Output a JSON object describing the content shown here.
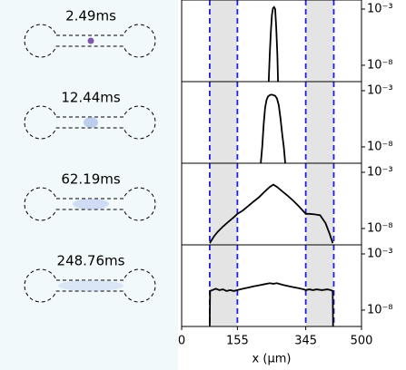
{
  "chart_data": [
    {
      "type": "line",
      "title": "2.49ms",
      "color": "#000000",
      "log_scale": true,
      "xlim": [
        0,
        500
      ],
      "ylim": [
        3.5e-10,
        0.0064
      ],
      "yticks": [
        {
          "value": 0.001,
          "label": "10⁻³"
        },
        {
          "value": 1e-08,
          "label": "10⁻⁸"
        }
      ],
      "regions": [
        [
          78,
          155
        ],
        [
          345,
          423
        ]
      ],
      "region_color": "#e4e4e4",
      "region_line_color": "#1f1fdc",
      "x": [
        242,
        245,
        248,
        251,
        254,
        257,
        260,
        263,
        266,
        268
      ],
      "values": [
        3.5e-10,
        1e-07,
        1e-05,
        0.0003,
        0.0012,
        0.0015,
        0.001,
        2e-05,
        1e-07,
        3.5e-10
      ]
    },
    {
      "type": "line",
      "title": "12.44ms",
      "color": "#000000",
      "log_scale": true,
      "xlim": [
        0,
        500
      ],
      "ylim": [
        3.5e-10,
        0.0064
      ],
      "yticks": [
        {
          "value": 0.001,
          "label": "10⁻³"
        },
        {
          "value": 1e-08,
          "label": "10⁻⁸"
        }
      ],
      "regions": [
        [
          78,
          155
        ],
        [
          345,
          423
        ]
      ],
      "region_color": "#e4e4e4",
      "region_line_color": "#1f1fdc",
      "x": [
        220,
        224,
        228,
        232,
        236,
        240,
        245,
        250,
        255,
        260,
        265,
        270,
        275,
        280,
        284,
        288
      ],
      "values": [
        3.5e-10,
        1e-08,
        1e-06,
        3e-05,
        0.00015,
        0.0003,
        0.0004,
        0.00045,
        0.0004,
        0.00035,
        0.0002,
        5e-05,
        3e-06,
        1e-07,
        1e-08,
        3.5e-10
      ]
    },
    {
      "type": "line",
      "title": "62.19ms",
      "color": "#000000",
      "log_scale": true,
      "xlim": [
        0,
        500
      ],
      "ylim": [
        3.5e-10,
        0.0064
      ],
      "yticks": [
        {
          "value": 0.001,
          "label": "10⁻³"
        },
        {
          "value": 1e-08,
          "label": "10⁻⁸"
        }
      ],
      "regions": [
        [
          78,
          155
        ],
        [
          345,
          423
        ]
      ],
      "region_color": "#e4e4e4",
      "region_line_color": "#1f1fdc",
      "x": [
        78,
        90,
        100,
        115,
        130,
        145,
        155,
        170,
        185,
        200,
        215,
        230,
        245,
        255,
        265,
        280,
        295,
        310,
        325,
        340,
        345,
        355,
        370,
        385,
        400,
        412,
        420
      ],
      "values": [
        5e-10,
        2e-09,
        5e-09,
        1.5e-08,
        4e-08,
        1e-07,
        2e-07,
        4e-07,
        1e-06,
        2.5e-06,
        6e-06,
        1.8e-05,
        5e-05,
        8e-05,
        5e-05,
        2e-05,
        8e-06,
        3e-06,
        1e-06,
        3e-07,
        2e-07,
        2e-07,
        1.8e-07,
        1.5e-07,
        3e-08,
        3e-09,
        5e-10
      ]
    },
    {
      "type": "line",
      "title": "248.76ms",
      "color": "#000000",
      "log_scale": true,
      "xlim": [
        0,
        500
      ],
      "ylim": [
        3.5e-10,
        0.0064
      ],
      "yticks": [
        {
          "value": 0.001,
          "label": "10⁻³"
        },
        {
          "value": 1e-08,
          "label": "10⁻⁸"
        }
      ],
      "xticks": [
        0,
        155,
        345,
        500
      ],
      "xlabel": "x (µm)",
      "regions": [
        [
          78,
          155
        ],
        [
          345,
          423
        ]
      ],
      "region_color": "#e4e4e4",
      "region_line_color": "#1f1fdc",
      "x": [
        78,
        79,
        85,
        95,
        105,
        115,
        125,
        135,
        145,
        155,
        170,
        185,
        200,
        215,
        230,
        245,
        255,
        265,
        280,
        295,
        310,
        325,
        340,
        345,
        355,
        365,
        375,
        390,
        405,
        415,
        420,
        421
      ],
      "values": [
        3.5e-10,
        5e-07,
        6e-07,
        8e-07,
        6e-07,
        7e-07,
        5e-07,
        6e-07,
        5e-07,
        6e-07,
        8e-07,
        1e-06,
        1.3e-06,
        1.6e-06,
        2e-06,
        2.5e-06,
        2.2e-06,
        2.5e-06,
        1.8e-06,
        1.4e-06,
        1.1e-06,
        9e-07,
        7e-07,
        6e-07,
        7e-07,
        6e-07,
        7e-07,
        6e-07,
        7e-07,
        6e-07,
        5e-07,
        3.5e-10
      ]
    }
  ]
}
